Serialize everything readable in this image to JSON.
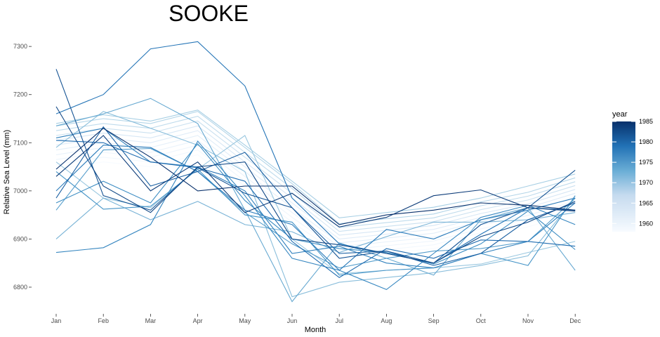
{
  "chart_data": {
    "type": "line",
    "title": "SOOKE",
    "xlabel": "Month",
    "ylabel": "Relative Sea Level (mm)",
    "categories": [
      "Jan",
      "Feb",
      "Mar",
      "Apr",
      "May",
      "Jun",
      "Jul",
      "Aug",
      "Sep",
      "Oct",
      "Nov",
      "Dec"
    ],
    "yticks": [
      6800,
      6900,
      7000,
      7100,
      7200,
      7300
    ],
    "ylim": [
      6750,
      7320
    ],
    "grid": false,
    "legend": {
      "title": "year",
      "position": "right",
      "ticks": [
        1960,
        1965,
        1970,
        1975,
        1980,
        1985
      ],
      "range": [
        1958,
        1985
      ],
      "low_color": "#f7fbff",
      "high_color": "#08306b"
    },
    "series": [
      {
        "year": 1958,
        "values": [
          7045,
          7060,
          7050,
          7075,
          7000,
          6925,
          6860,
          6870,
          6880,
          6905,
          6925,
          6955
        ]
      },
      {
        "year": 1959,
        "values": [
          7055,
          7070,
          7060,
          7085,
          7010,
          6935,
          6868,
          6878,
          6888,
          6913,
          6933,
          6963
        ]
      },
      {
        "year": 1960,
        "values": [
          7065,
          7080,
          7070,
          7095,
          7020,
          6945,
          6876,
          6886,
          6896,
          6921,
          6941,
          6971
        ]
      },
      {
        "year": 1961,
        "values": [
          7075,
          7090,
          7080,
          7105,
          7030,
          6955,
          6884,
          6894,
          6904,
          6929,
          6949,
          6979
        ]
      },
      {
        "year": 1962,
        "values": [
          7085,
          7100,
          7090,
          7115,
          7040,
          6965,
          6892,
          6902,
          6912,
          6937,
          6957,
          6987
        ]
      },
      {
        "year": 1963,
        "values": [
          7095,
          7110,
          7100,
          7125,
          7050,
          6975,
          6900,
          6910,
          6920,
          6945,
          6965,
          6995
        ]
      },
      {
        "year": 1964,
        "values": [
          7105,
          7120,
          7110,
          7135,
          7060,
          6985,
          6908,
          6918,
          6928,
          6953,
          6973,
          7003
        ]
      },
      {
        "year": 1965,
        "values": [
          7115,
          7130,
          7120,
          7145,
          7070,
          6995,
          6916,
          6926,
          6936,
          6961,
          6981,
          7011
        ]
      },
      {
        "year": 1966,
        "values": [
          7125,
          7140,
          7130,
          7155,
          7080,
          7005,
          6924,
          6934,
          6944,
          6969,
          6989,
          7019
        ]
      },
      {
        "year": 1967,
        "values": [
          7135,
          7150,
          7140,
          7165,
          7090,
          7015,
          6932,
          6942,
          6952,
          6977,
          6997,
          7027
        ]
      },
      {
        "year": 1968,
        "values": [
          7140,
          7158,
          7145,
          7168,
          7095,
          7020,
          6944,
          6955,
          6966,
          6985,
          7010,
          7035
        ]
      },
      {
        "year": 1969,
        "values": [
          7060,
          6985,
          6965,
          7045,
          7115,
          6900,
          6828,
          6835,
          6840,
          6848,
          6872,
          6895
        ]
      },
      {
        "year": 1970,
        "values": [
          7090,
          7165,
          7130,
          7095,
          7040,
          6780,
          6810,
          6820,
          6830,
          6845,
          6865,
          6985
        ]
      },
      {
        "year": 1971,
        "values": [
          6900,
          6985,
          6940,
          6978,
          6930,
          6915,
          6872,
          6905,
          6935,
          6935,
          6940,
          6955
        ]
      },
      {
        "year": 1972,
        "values": [
          7135,
          7160,
          7192,
          7140,
          6960,
          6770,
          6892,
          6860,
          6825,
          6940,
          6965,
          6835
        ]
      },
      {
        "year": 1973,
        "values": [
          6960,
          7085,
          7088,
          7040,
          6955,
          6890,
          6840,
          6860,
          6875,
          6880,
          6895,
          6985
        ]
      },
      {
        "year": 1974,
        "values": [
          7040,
          6962,
          6968,
          7045,
          6950,
          6935,
          6825,
          6835,
          6840,
          6870,
          6845,
          6990
        ]
      },
      {
        "year": 1975,
        "values": [
          6975,
          7020,
          6975,
          7098,
          6980,
          6900,
          6880,
          6872,
          6848,
          6890,
          6958,
          6878
        ]
      },
      {
        "year": 1976,
        "values": [
          6872,
          6882,
          6930,
          7103,
          6990,
          6860,
          6835,
          6795,
          6870,
          6945,
          6970,
          6930
        ]
      },
      {
        "year": 1977,
        "values": [
          7110,
          7130,
          7060,
          7050,
          7000,
          6870,
          6885,
          6850,
          6840,
          6870,
          6895,
          6975
        ]
      },
      {
        "year": 1978,
        "values": [
          7000,
          7095,
          7090,
          7040,
          6960,
          6930,
          6835,
          6920,
          6900,
          6940,
          6960,
          6985
        ]
      },
      {
        "year": 1979,
        "values": [
          7160,
          7200,
          7295,
          7310,
          7218,
          6985,
          6890,
          6870,
          6850,
          6910,
          6965,
          6960
        ]
      },
      {
        "year": 1980,
        "values": [
          7105,
          7100,
          7060,
          7048,
          7020,
          6895,
          6820,
          6880,
          6860,
          6898,
          6895,
          6885
        ]
      },
      {
        "year": 1981,
        "values": [
          6985,
          7133,
          7010,
          7040,
          7080,
          6965,
          6870,
          6875,
          6845,
          6870,
          6940,
          6975
        ]
      },
      {
        "year": 1982,
        "values": [
          7253,
          6990,
          6960,
          7048,
          6995,
          6965,
          6860,
          6875,
          6850,
          6930,
          6965,
          7043
        ]
      },
      {
        "year": 1983,
        "values": [
          7175,
          7010,
          6955,
          7050,
          7060,
          6900,
          6888,
          6870,
          6850,
          6905,
          6935,
          6978
        ]
      },
      {
        "year": 1984,
        "values": [
          7030,
          7115,
          7000,
          7060,
          6955,
          6995,
          6925,
          6945,
          6990,
          7002,
          6965,
          6958
        ]
      },
      {
        "year": 1985,
        "values": [
          7045,
          7130,
          7070,
          7000,
          7010,
          7010,
          6930,
          6950,
          6960,
          6975,
          6970,
          6960
        ]
      }
    ]
  }
}
